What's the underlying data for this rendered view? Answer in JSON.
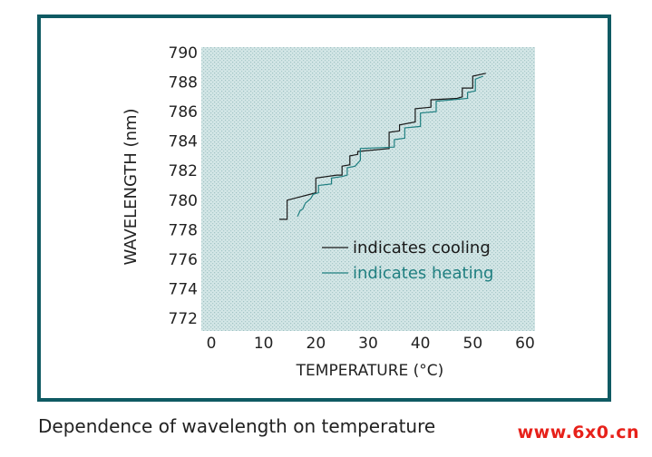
{
  "chart_data": {
    "type": "line",
    "title": "",
    "xlabel": "TEMPERATURE (°C)",
    "ylabel": "WAVELENGTH (nm)",
    "xlim": [
      0,
      60
    ],
    "ylim": [
      771,
      790.4
    ],
    "xticks": [
      0,
      10,
      20,
      30,
      40,
      50,
      60
    ],
    "yticks": [
      772,
      774,
      776,
      778,
      780,
      782,
      784,
      786,
      788,
      790
    ],
    "grid": true,
    "legend_position": "lower-right",
    "series": [
      {
        "name": "indicates cooling",
        "color": "#1a1a1a",
        "points": [
          [
            13,
            778.7
          ],
          [
            14.5,
            778.7
          ],
          [
            14.5,
            780.0
          ],
          [
            20,
            780.5
          ],
          [
            20,
            781.5
          ],
          [
            24,
            781.7
          ],
          [
            25,
            781.7
          ],
          [
            25,
            782.3
          ],
          [
            26.5,
            782.4
          ],
          [
            26.5,
            783.0
          ],
          [
            28,
            783.1
          ],
          [
            28,
            783.3
          ],
          [
            34,
            783.5
          ],
          [
            34,
            784.6
          ],
          [
            36,
            784.7
          ],
          [
            36,
            785.1
          ],
          [
            39,
            785.3
          ],
          [
            39,
            786.2
          ],
          [
            42,
            786.3
          ],
          [
            42,
            786.8
          ],
          [
            47,
            786.9
          ],
          [
            48,
            787.0
          ],
          [
            48,
            787.6
          ],
          [
            50,
            787.6
          ],
          [
            50,
            788.4
          ],
          [
            52.5,
            788.6
          ]
        ]
      },
      {
        "name": "indicates heating",
        "color": "#1f7f80",
        "points": [
          [
            16.5,
            778.9
          ],
          [
            17,
            779.3
          ],
          [
            17.5,
            779.4
          ],
          [
            18,
            779.8
          ],
          [
            19,
            780.1
          ],
          [
            19.5,
            780.4
          ],
          [
            20.5,
            780.5
          ],
          [
            20.5,
            781.0
          ],
          [
            23,
            781.1
          ],
          [
            23,
            781.5
          ],
          [
            25,
            781.6
          ],
          [
            26,
            781.7
          ],
          [
            26,
            782.2
          ],
          [
            27.5,
            782.3
          ],
          [
            28.5,
            782.7
          ],
          [
            28.5,
            783.5
          ],
          [
            35,
            783.6
          ],
          [
            35,
            784.1
          ],
          [
            37,
            784.2
          ],
          [
            37,
            784.9
          ],
          [
            40,
            785.0
          ],
          [
            40,
            785.9
          ],
          [
            43,
            786.0
          ],
          [
            43,
            786.7
          ],
          [
            49,
            786.9
          ],
          [
            49,
            787.3
          ],
          [
            50.5,
            787.4
          ],
          [
            50.5,
            788.2
          ],
          [
            52,
            788.4
          ]
        ]
      }
    ]
  },
  "caption": "Dependence of wavelength on temperature",
  "watermark": "www.6x0.cn",
  "colors": {
    "frame": "#0f5a63",
    "plot_background": "#cfe3e3",
    "grid_dots": "#9fc2c3",
    "cooling": "#1a1a1a",
    "heating": "#1f7f80"
  }
}
